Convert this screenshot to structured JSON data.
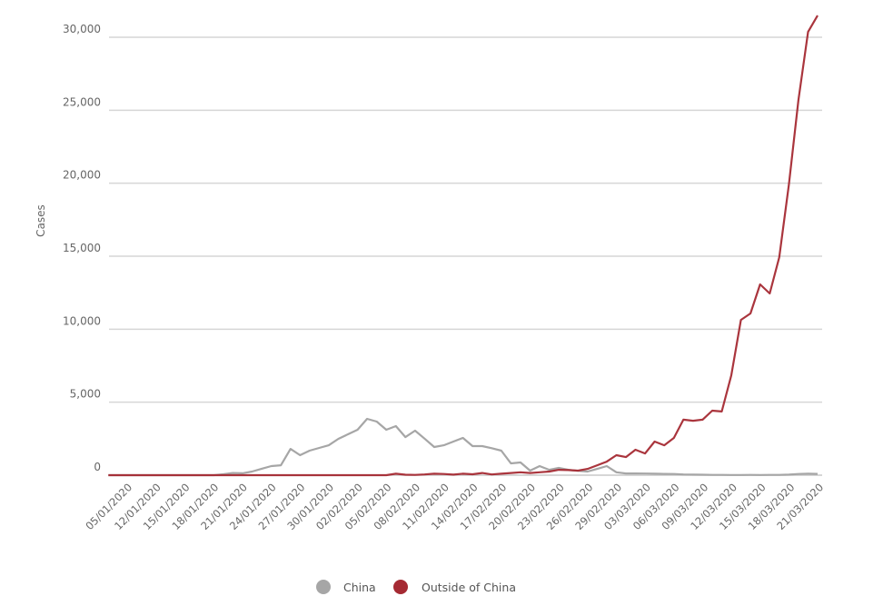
{
  "chart_data": {
    "type": "line",
    "title": "",
    "xlabel": "",
    "ylabel": "Cases",
    "ylim": [
      0,
      30000
    ],
    "yticks": [
      "0",
      "5,000",
      "10,000",
      "15,000",
      "20,000",
      "25,000",
      "30,000"
    ],
    "ytick_values": [
      0,
      5000,
      10000,
      15000,
      20000,
      25000,
      30000
    ],
    "grid": "horizontal",
    "legend_position": "bottom",
    "xtick_labels": [
      "05/01/2020",
      "12/01/2020",
      "15/01/2020",
      "18/01/2020",
      "21/01/2020",
      "24/01/2020",
      "27/01/2020",
      "30/01/2020",
      "02/02/2020",
      "05/02/2020",
      "08/02/2020",
      "11/02/2020",
      "14/02/2020",
      "17/02/2020",
      "20/02/2020",
      "23/02/2020",
      "26/02/2020",
      "29/02/2020",
      "03/03/2020",
      "06/03/2020",
      "09/03/2020",
      "12/03/2020",
      "15/03/2020",
      "18/03/2020",
      "21/03/2020"
    ],
    "x": [
      "07/01/2020",
      "08/01/2020",
      "09/01/2020",
      "10/01/2020",
      "11/01/2020",
      "12/01/2020",
      "13/01/2020",
      "14/01/2020",
      "15/01/2020",
      "16/01/2020",
      "17/01/2020",
      "18/01/2020",
      "19/01/2020",
      "20/01/2020",
      "21/01/2020",
      "22/01/2020",
      "23/01/2020",
      "24/01/2020",
      "25/01/2020",
      "26/01/2020",
      "27/01/2020",
      "28/01/2020",
      "29/01/2020",
      "30/01/2020",
      "31/01/2020",
      "01/02/2020",
      "02/02/2020",
      "03/02/2020",
      "04/02/2020",
      "05/02/2020",
      "06/02/2020",
      "07/02/2020",
      "08/02/2020",
      "09/02/2020",
      "10/02/2020",
      "11/02/2020",
      "12/02/2020",
      "13/02/2020",
      "14/02/2020",
      "15/02/2020",
      "16/02/2020",
      "17/02/2020",
      "18/02/2020",
      "19/02/2020",
      "20/02/2020",
      "21/02/2020",
      "22/02/2020",
      "23/02/2020",
      "24/02/2020",
      "25/02/2020",
      "26/02/2020",
      "27/02/2020",
      "28/02/2020",
      "29/02/2020",
      "01/03/2020",
      "02/03/2020",
      "03/03/2020",
      "04/03/2020",
      "05/03/2020",
      "06/03/2020",
      "07/03/2020",
      "08/03/2020",
      "09/03/2020",
      "10/03/2020",
      "11/03/2020",
      "12/03/2020",
      "13/03/2020",
      "14/03/2020",
      "15/03/2020",
      "16/03/2020",
      "17/03/2020",
      "18/03/2020",
      "19/03/2020",
      "20/03/2020",
      "21/03/2020"
    ],
    "series": [
      {
        "name": "China",
        "color": "#a6a6a6",
        "values": [
          0,
          0,
          0,
          0,
          0,
          0,
          0,
          0,
          0,
          0,
          0,
          0,
          60,
          150,
          130,
          250,
          440,
          620,
          680,
          1800,
          1370,
          1680,
          1870,
          2050,
          2490,
          2800,
          3110,
          3860,
          3670,
          3110,
          3360,
          2610,
          3050,
          2500,
          1930,
          2050,
          2300,
          2550,
          1990,
          1990,
          1850,
          1680,
          810,
          870,
          310,
          620,
          370,
          500,
          370,
          300,
          250,
          430,
          620,
          200,
          120,
          120,
          110,
          100,
          90,
          80,
          50,
          40,
          30,
          20,
          20,
          15,
          10,
          20,
          15,
          20,
          20,
          40,
          80,
          100,
          90
        ]
      },
      {
        "name": "Outside of China",
        "color": "#a52a33",
        "values": [
          0,
          0,
          0,
          0,
          0,
          0,
          0,
          0,
          0,
          0,
          0,
          0,
          0,
          0,
          0,
          0,
          0,
          0,
          0,
          0,
          0,
          0,
          0,
          0,
          0,
          0,
          0,
          0,
          0,
          0,
          100,
          30,
          20,
          50,
          100,
          80,
          40,
          100,
          60,
          150,
          50,
          100,
          150,
          200,
          150,
          200,
          250,
          370,
          350,
          310,
          430,
          680,
          930,
          1370,
          1240,
          1740,
          1490,
          2300,
          2050,
          2550,
          3800,
          3730,
          3800,
          4420,
          4360,
          6840,
          10640,
          11080,
          13070,
          12450,
          14930,
          19910,
          25700,
          30370,
          31490
        ]
      }
    ]
  }
}
